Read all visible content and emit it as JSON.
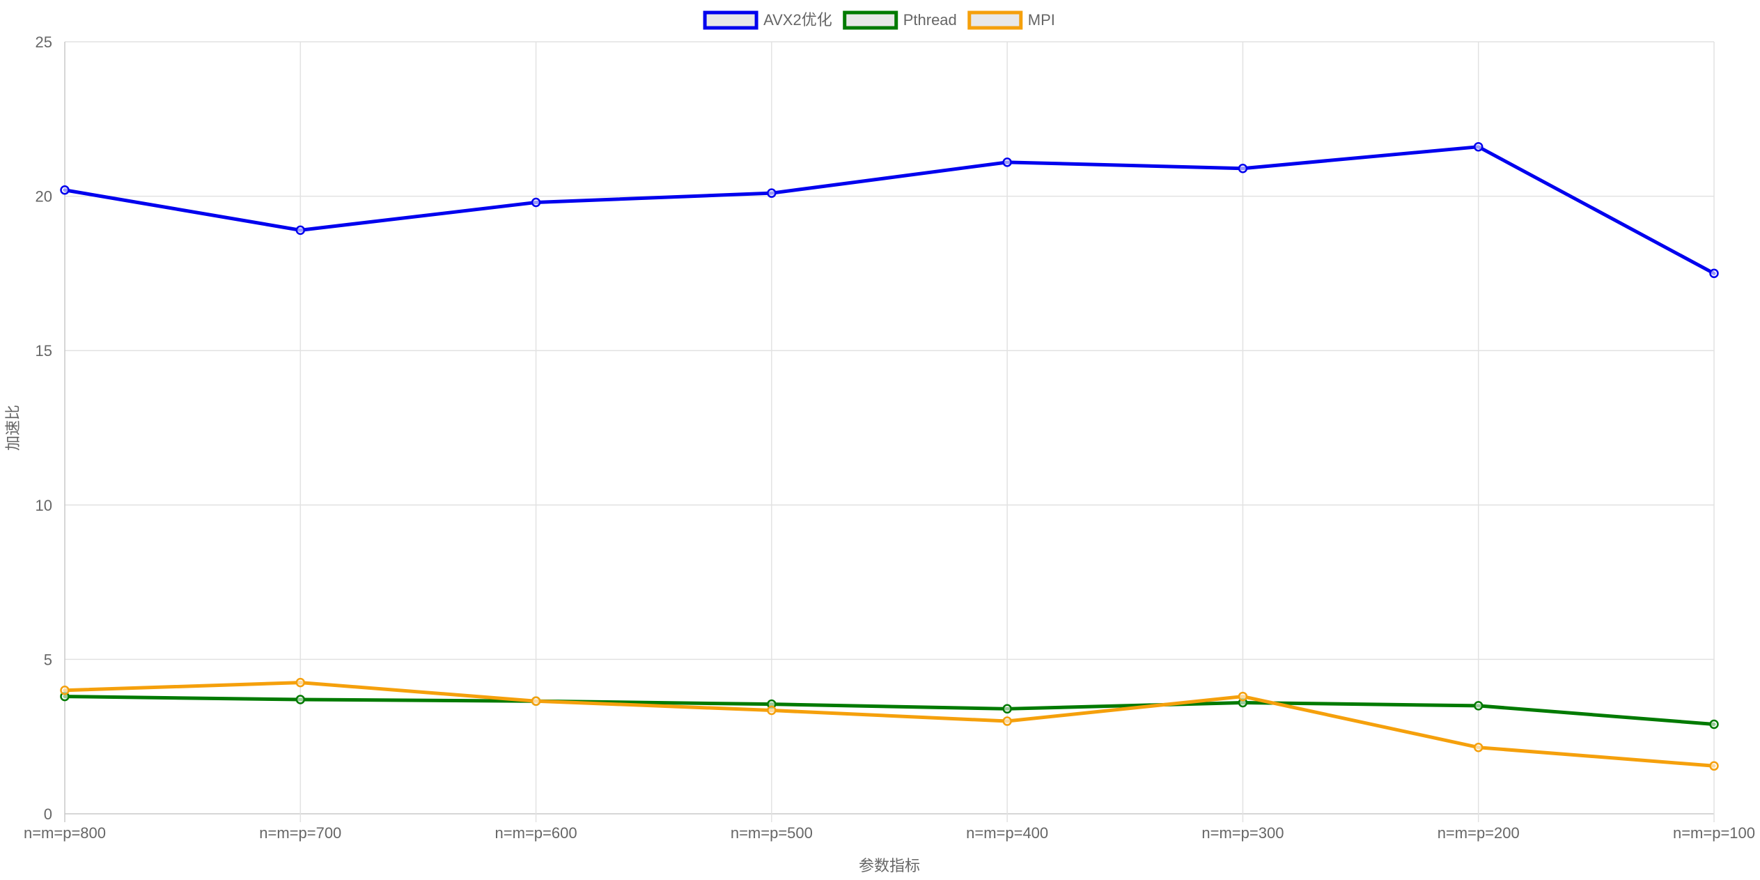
{
  "chart_data": {
    "type": "line",
    "title": "",
    "xlabel": "参数指标",
    "ylabel": "加速比",
    "categories": [
      "n=m=p=800",
      "n=m=p=700",
      "n=m=p=600",
      "n=m=p=500",
      "n=m=p=400",
      "n=m=p=300",
      "n=m=p=200",
      "n=m=p=100"
    ],
    "ylim": [
      0,
      25
    ],
    "yticks": [
      0,
      5,
      10,
      15,
      20,
      25
    ],
    "grid": true,
    "legend_position": "top-center",
    "series": [
      {
        "name": "AVX2优化",
        "color": "#0000ee",
        "values": [
          20.2,
          18.9,
          19.8,
          20.1,
          21.1,
          20.9,
          21.6,
          17.5
        ]
      },
      {
        "name": "Pthread",
        "color": "#007a00",
        "values": [
          3.8,
          3.7,
          3.65,
          3.55,
          3.4,
          3.6,
          3.5,
          2.9
        ]
      },
      {
        "name": "MPI",
        "color": "#f5a00c",
        "values": [
          4.0,
          4.25,
          3.65,
          3.35,
          3.0,
          3.8,
          2.15,
          1.55
        ]
      }
    ]
  }
}
